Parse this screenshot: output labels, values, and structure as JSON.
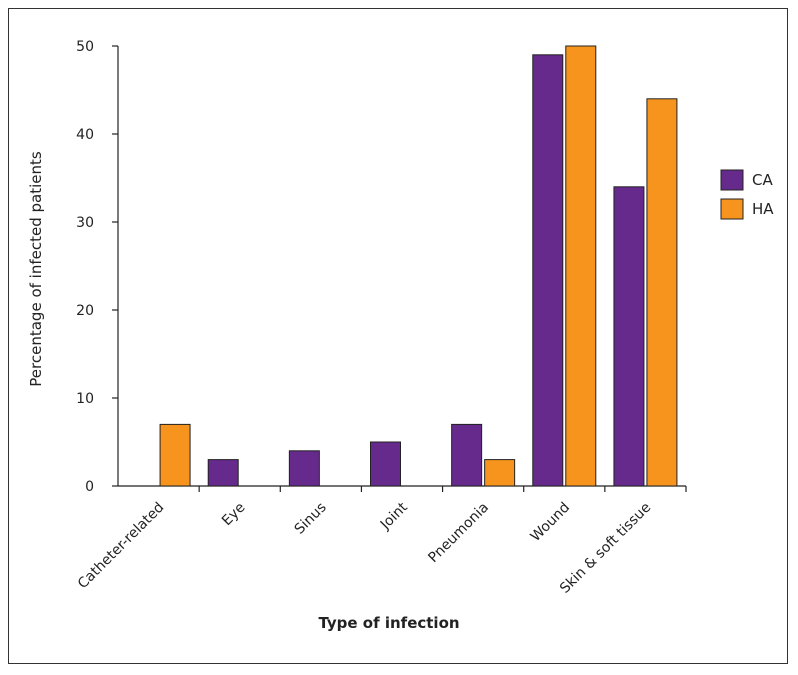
{
  "chart_data": {
    "type": "bar",
    "categories": [
      "Catheter-related",
      "Eye",
      "Sinus",
      "Joint",
      "Pneumonia",
      "Wound",
      "Skin & soft tissue"
    ],
    "series": [
      {
        "name": "CA",
        "color": "#66298c",
        "values": [
          0,
          3,
          4,
          5,
          7,
          49,
          34
        ]
      },
      {
        "name": "HA",
        "color": "#f7941d",
        "values": [
          7,
          0,
          0,
          0,
          3,
          50,
          44
        ]
      }
    ],
    "xlabel": "Type of infection",
    "ylabel": "Percentage of infected patients",
    "ylim": [
      0,
      50
    ],
    "yticks": [
      "0",
      "10",
      "20",
      "30",
      "40",
      "50"
    ],
    "grid": false,
    "legend": "right"
  }
}
